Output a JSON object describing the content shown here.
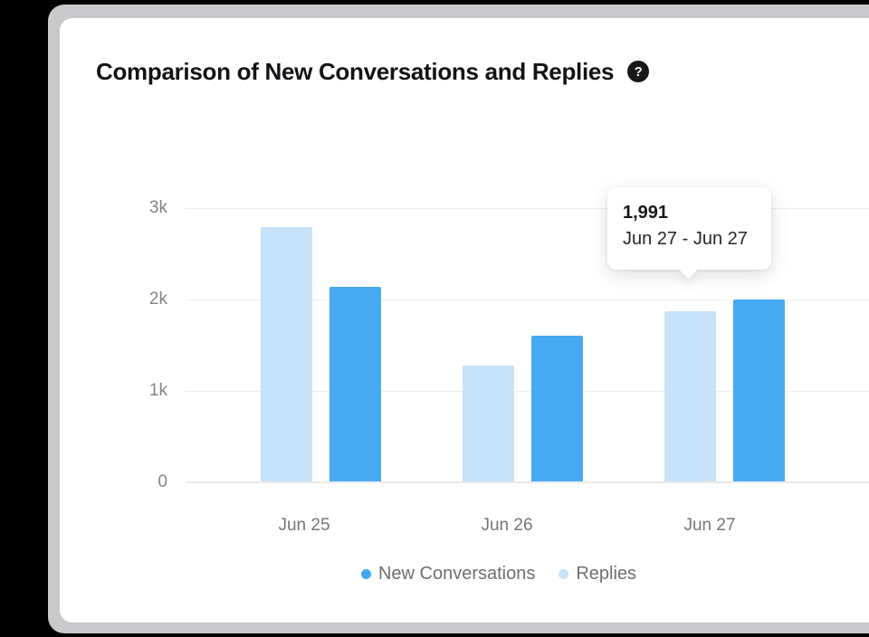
{
  "window": {
    "background_color": "#000000",
    "frame_color": "#c9c9cb",
    "card_color": "#ffffff"
  },
  "header": {
    "title": "Comparison of New Conversations and Replies",
    "help_glyph": "?"
  },
  "chart_data": {
    "type": "bar",
    "title": "Comparison of New Conversations and Replies",
    "categories": [
      "Jun 25",
      "Jun 26",
      "Jun 27"
    ],
    "series": [
      {
        "name": "Replies",
        "color": "#c6e2f8",
        "values": [
          2780,
          1270,
          1860
        ]
      },
      {
        "name": "New Conversations",
        "color": "#47aaf1",
        "values": [
          2130,
          1590,
          1991
        ]
      }
    ],
    "y_ticks": [
      "3k",
      "2k",
      "1k",
      "0"
    ],
    "y_tick_values": [
      3000,
      2000,
      1000,
      0
    ],
    "ylim": [
      0,
      3000
    ],
    "grid": true,
    "gridline_color": "#ededef",
    "axis_line_color": "#e7e9eb",
    "legend_position": "bottom",
    "legend": [
      {
        "label": "New Conversations",
        "color": "#41a8f0"
      },
      {
        "label": "Replies",
        "color": "#c6e2f8"
      }
    ],
    "tooltip": {
      "value": "1,991",
      "date_range": "Jun 27 - Jun 27",
      "target_category": "Jun 27"
    }
  }
}
